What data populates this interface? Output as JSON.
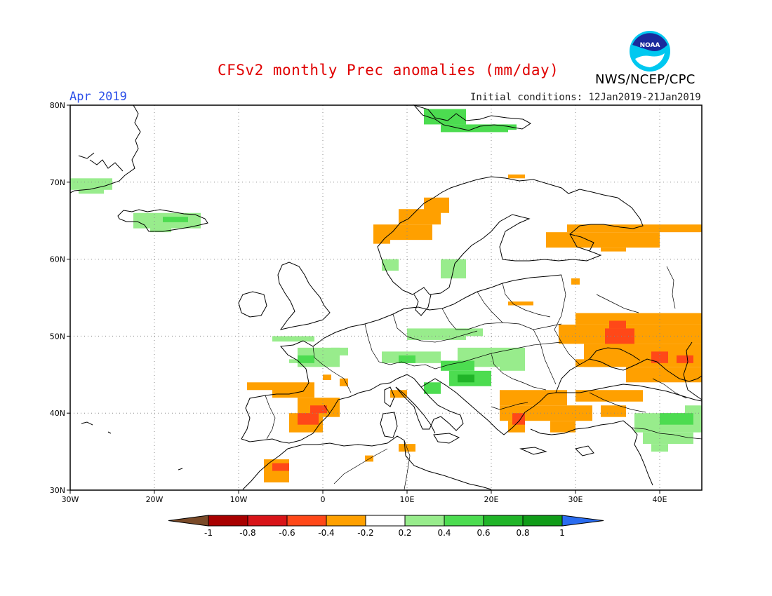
{
  "header": {
    "title": "CFSv2 monthly Prec anomalies (mm/day)",
    "period": "Apr 2019",
    "initial_conditions": "Initial conditions: 12Jan2019-21Jan2019",
    "agency": "NWS/NCEP/CPC",
    "logo_text": "NOAA"
  },
  "map": {
    "lon_range": [
      -30,
      45
    ],
    "lat_range": [
      30,
      80
    ],
    "lon_ticks": [
      {
        "value": -30,
        "label": "30W"
      },
      {
        "value": -20,
        "label": "20W"
      },
      {
        "value": -10,
        "label": "10W"
      },
      {
        "value": 0,
        "label": "0"
      },
      {
        "value": 10,
        "label": "10E"
      },
      {
        "value": 20,
        "label": "20E"
      },
      {
        "value": 30,
        "label": "30E"
      },
      {
        "value": 40,
        "label": "40E"
      }
    ],
    "lat_ticks": [
      {
        "value": 30,
        "label": "30N"
      },
      {
        "value": 40,
        "label": "40N"
      },
      {
        "value": 50,
        "label": "50N"
      },
      {
        "value": 60,
        "label": "60N"
      },
      {
        "value": 70,
        "label": "70N"
      },
      {
        "value": 80,
        "label": "80N"
      }
    ],
    "anomaly_regions": [
      {
        "name": "greenland-east-coast",
        "cls": 0.3,
        "cells": [
          [
            -30,
            70.5,
            -25,
            69
          ],
          [
            -29,
            69.5,
            -26,
            68.5
          ]
        ]
      },
      {
        "name": "iceland",
        "cls": 0.3,
        "cells": [
          [
            -22.5,
            66,
            -14.5,
            64
          ],
          [
            -20.5,
            64.5,
            -18,
            63.5
          ]
        ]
      },
      {
        "name": "iceland-core",
        "cls": 0.5,
        "cells": [
          [
            -19,
            65.5,
            -16,
            64.8
          ]
        ]
      },
      {
        "name": "svalbard",
        "cls": 0.5,
        "cells": [
          [
            12,
            79.5,
            17,
            77.5
          ],
          [
            14,
            77.5,
            22,
            76.5
          ],
          [
            18,
            77.5,
            23,
            76.8
          ]
        ]
      },
      {
        "name": "norway-coast",
        "cls": -0.3,
        "cells": [
          [
            6,
            64.5,
            13,
            62.5
          ],
          [
            9,
            66.5,
            14,
            64.5
          ],
          [
            12,
            68,
            15,
            66
          ],
          [
            6,
            63,
            8,
            62
          ]
        ]
      },
      {
        "name": "north-cape",
        "cls": -0.3,
        "cells": [
          [
            22,
            71,
            24,
            70.5
          ]
        ]
      },
      {
        "name": "sweden-south",
        "cls": 0.3,
        "cells": [
          [
            14,
            60,
            17,
            57.5
          ],
          [
            7,
            60,
            9,
            58.5
          ]
        ]
      },
      {
        "name": "russia-north",
        "cls": -0.3,
        "cells": [
          [
            29,
            64.5,
            45,
            63.5
          ],
          [
            26.5,
            63.5,
            40,
            61.5
          ],
          [
            33,
            61.5,
            36,
            61
          ]
        ]
      },
      {
        "name": "russia-point",
        "cls": -0.3,
        "cells": [
          [
            29.5,
            57.5,
            30.5,
            56.7
          ]
        ]
      },
      {
        "name": "baltic-sp",
        "cls": -0.3,
        "cells": [
          [
            22,
            54.5,
            25,
            54
          ]
        ]
      },
      {
        "name": "ukraine-russia",
        "cls": -0.3,
        "cells": [
          [
            30,
            53,
            45,
            51.5
          ],
          [
            28,
            51.5,
            45,
            49
          ],
          [
            31,
            49,
            45,
            46
          ],
          [
            36,
            46,
            45,
            44
          ],
          [
            30,
            47,
            34,
            46
          ]
        ]
      },
      {
        "name": "ukraine-core",
        "cls": -0.5,
        "cells": [
          [
            33.5,
            51,
            37,
            49
          ],
          [
            34,
            52,
            36,
            51
          ]
        ]
      },
      {
        "name": "caucasus-core",
        "cls": -0.5,
        "cells": [
          [
            39,
            48,
            41,
            46.5
          ],
          [
            42,
            47.5,
            44,
            46.5
          ]
        ]
      },
      {
        "name": "turkey",
        "cls": -0.3,
        "cells": [
          [
            21,
            43,
            29,
            41
          ],
          [
            25,
            41,
            32,
            39
          ],
          [
            30,
            43,
            38,
            41.5
          ],
          [
            33,
            41,
            36,
            39.5
          ],
          [
            27,
            39,
            30,
            37.5
          ]
        ]
      },
      {
        "name": "greece",
        "cls": -0.3,
        "cells": [
          [
            21,
            41,
            25,
            39
          ],
          [
            22,
            39,
            24,
            37.5
          ]
        ]
      },
      {
        "name": "greece-core",
        "cls": -0.5,
        "cells": [
          [
            22.5,
            40,
            24,
            38.5
          ]
        ]
      },
      {
        "name": "france-west",
        "cls": 0.3,
        "cells": [
          [
            -6,
            50,
            -1,
            49.3
          ],
          [
            -3,
            48.5,
            2,
            46
          ],
          [
            -4,
            47,
            0,
            46.5
          ],
          [
            1,
            48.5,
            3,
            47.5
          ]
        ]
      },
      {
        "name": "france-core",
        "cls": 0.5,
        "cells": [
          [
            -3,
            47.5,
            -1,
            46.5
          ]
        ]
      },
      {
        "name": "central-europe",
        "cls": 0.3,
        "cells": [
          [
            10,
            51,
            17,
            49.5
          ],
          [
            14,
            51,
            19,
            50
          ],
          [
            7,
            48,
            14,
            46.5
          ],
          [
            16,
            48.5,
            24,
            46
          ],
          [
            21,
            47,
            24,
            45.5
          ]
        ]
      },
      {
        "name": "alps-core",
        "cls": 0.5,
        "cells": [
          [
            9,
            47.5,
            11,
            46.5
          ],
          [
            14,
            46.8,
            18,
            45.5
          ]
        ]
      },
      {
        "name": "balkans",
        "cls": 0.5,
        "cells": [
          [
            15,
            45.5,
            20,
            43.5
          ],
          [
            12,
            44,
            14,
            42.5
          ]
        ]
      },
      {
        "name": "balkans-core",
        "cls": 0.7,
        "cells": [
          [
            16,
            45,
            18,
            44
          ]
        ]
      },
      {
        "name": "iberia",
        "cls": -0.3,
        "cells": [
          [
            -9,
            44,
            -6,
            43
          ],
          [
            -6,
            44,
            -1,
            42
          ],
          [
            -3,
            42,
            2,
            39.5
          ],
          [
            -4,
            40,
            0,
            37.5
          ],
          [
            2,
            44.5,
            3,
            43.5
          ]
        ]
      },
      {
        "name": "iberia-core",
        "cls": -0.5,
        "cells": [
          [
            -3,
            40,
            -0.5,
            38.5
          ],
          [
            -1.5,
            41,
            0.5,
            40
          ]
        ]
      },
      {
        "name": "iberia-points",
        "cls": -0.3,
        "cells": [
          [
            0,
            45,
            1,
            44.3
          ],
          [
            5,
            34.5,
            6,
            33.7
          ]
        ]
      },
      {
        "name": "tunisia",
        "cls": -0.3,
        "cells": [
          [
            9,
            36,
            11,
            35
          ]
        ]
      },
      {
        "name": "italy-point",
        "cls": -0.3,
        "cells": [
          [
            8,
            43,
            10,
            42
          ]
        ]
      },
      {
        "name": "morocco",
        "cls": -0.3,
        "cells": [
          [
            -7,
            34,
            -4,
            31
          ]
        ]
      },
      {
        "name": "morocco-core",
        "cls": -0.5,
        "cells": [
          [
            -6,
            33.5,
            -4,
            32.5
          ]
        ]
      },
      {
        "name": "east-med",
        "cls": 0.3,
        "cells": [
          [
            37,
            40,
            45,
            37.5
          ],
          [
            38,
            37.5,
            44,
            36
          ],
          [
            43,
            41,
            45,
            39
          ],
          [
            39,
            36,
            41,
            35
          ]
        ]
      },
      {
        "name": "east-med-core",
        "cls": 0.5,
        "cells": [
          [
            40,
            40,
            44,
            38.5
          ]
        ]
      }
    ]
  },
  "colorbar": {
    "ticks": [
      "-1",
      "-0.8",
      "-0.6",
      "-0.4",
      "-0.2",
      "0.2",
      "0.4",
      "0.6",
      "0.8",
      "1"
    ],
    "colors": {
      "below_min": "#7a4a28",
      "-0.9": "#a80000",
      "-0.7": "#d81418",
      "-0.5": "#ff4818",
      "-0.3": "#ffa000",
      "0": "#ffffff",
      "0.3": "#98ec8c",
      "0.5": "#4cdc50",
      "0.7": "#20b428",
      "0.9": "#109c18",
      "above_max": "#2a6cf0"
    }
  }
}
